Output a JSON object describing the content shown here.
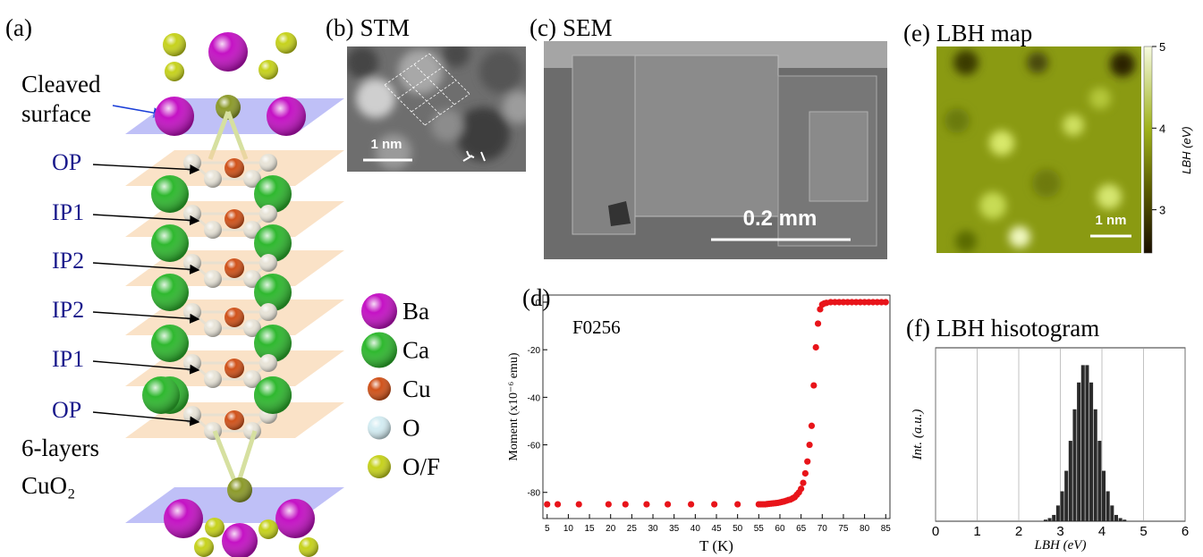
{
  "structure": {
    "tag": "(a)",
    "cleaved": [
      "Cleaved",
      "surface"
    ],
    "layers": [
      "OP",
      "IP1",
      "IP2",
      "IP2",
      "IP1",
      "OP"
    ],
    "caption": [
      "6-layers",
      "CuO₂"
    ],
    "legend": [
      {
        "name": "Ba",
        "color": "#c412c4"
      },
      {
        "name": "Ca",
        "color": "#2fb82f"
      },
      {
        "name": "Cu",
        "color": "#d0521a"
      },
      {
        "name": "O",
        "color": "#d3ecf2"
      },
      {
        "name": "O/F",
        "color": "#c6d21c"
      }
    ]
  },
  "stm": {
    "tag": "(b)",
    "title": "STM",
    "scale_bar": "1 nm"
  },
  "sem": {
    "tag": "(c)",
    "title": "SEM",
    "scale_bar": "0.2 mm"
  },
  "lbh_map": {
    "tag": "(e)",
    "title": "LBH map",
    "scale_bar": "1 nm",
    "colorbar": {
      "label": "LBH (eV)",
      "lim": [
        2.47,
        5
      ],
      "ticks": [
        3,
        4,
        5
      ]
    }
  },
  "chart_data": [
    {
      "type": "scatter",
      "tag": "(d)",
      "annotation": "F0256",
      "color": "#e8141a",
      "x": [
        5,
        7.5,
        12.5,
        19.5,
        23.5,
        28.5,
        33.5,
        39,
        44.5,
        50,
        55,
        55.5,
        56,
        56.5,
        57,
        57.5,
        58,
        58.5,
        59,
        59.5,
        60,
        60.5,
        61,
        61.5,
        62,
        62.5,
        63,
        63.5,
        64,
        64.5,
        65,
        65.5,
        66,
        66.5,
        67,
        67.5,
        68,
        68.5,
        69,
        69.5,
        70,
        70.5,
        71,
        72,
        73,
        74,
        75,
        76,
        77,
        78,
        79,
        80,
        81,
        82,
        83,
        84,
        85
      ],
      "values": [
        -85,
        -85,
        -85,
        -85,
        -85,
        -85,
        -85,
        -85,
        -85,
        -85,
        -85,
        -85,
        -85,
        -85,
        -84.9,
        -84.8,
        -84.7,
        -84.6,
        -84.5,
        -84.4,
        -84.2,
        -84,
        -83.8,
        -83.5,
        -83.2,
        -83,
        -82.5,
        -82,
        -81,
        -80,
        -78.5,
        -76,
        -72,
        -67,
        -60,
        -52,
        -35,
        -19,
        -9,
        -3,
        -1,
        -0.5,
        -0.3,
        0,
        0,
        0,
        0,
        0,
        0,
        0,
        0,
        0,
        0,
        0,
        0,
        0,
        0
      ],
      "xlim": [
        4,
        86
      ],
      "ylim": [
        -91,
        3
      ],
      "xticks": [
        5,
        10,
        15,
        20,
        25,
        30,
        35,
        40,
        45,
        50,
        55,
        60,
        65,
        70,
        75,
        80,
        85
      ],
      "yticks": [
        0,
        -20,
        -40,
        -60,
        -80
      ],
      "x_label": "T (K)",
      "y_label": "Moment  (x10⁻⁶ emu)"
    },
    {
      "type": "histogram",
      "tag": "(f)",
      "title": "LBH hisotogram",
      "color": "#2b2b2b",
      "bins": [
        2.4,
        2.5,
        2.6,
        2.7,
        2.8,
        2.9,
        3.0,
        3.1,
        3.2,
        3.3,
        3.4,
        3.5,
        3.6,
        3.7,
        3.8,
        3.9,
        4.0,
        4.1,
        4.2,
        4.3,
        4.4,
        4.5,
        4.6,
        4.7,
        4.8
      ],
      "values": [
        0,
        0,
        1,
        2,
        4,
        10,
        19,
        32,
        51,
        71,
        88,
        99,
        99,
        88,
        71,
        51,
        32,
        19,
        10,
        4,
        2,
        1,
        0,
        0
      ],
      "xlim": [
        0,
        6
      ],
      "ylim": [
        0,
        110
      ],
      "xticks": [
        0,
        1,
        2,
        3,
        4,
        5,
        6
      ],
      "grid": true,
      "x_label": "LBH (eV)",
      "y_label": "Int. (a.u.)"
    }
  ]
}
